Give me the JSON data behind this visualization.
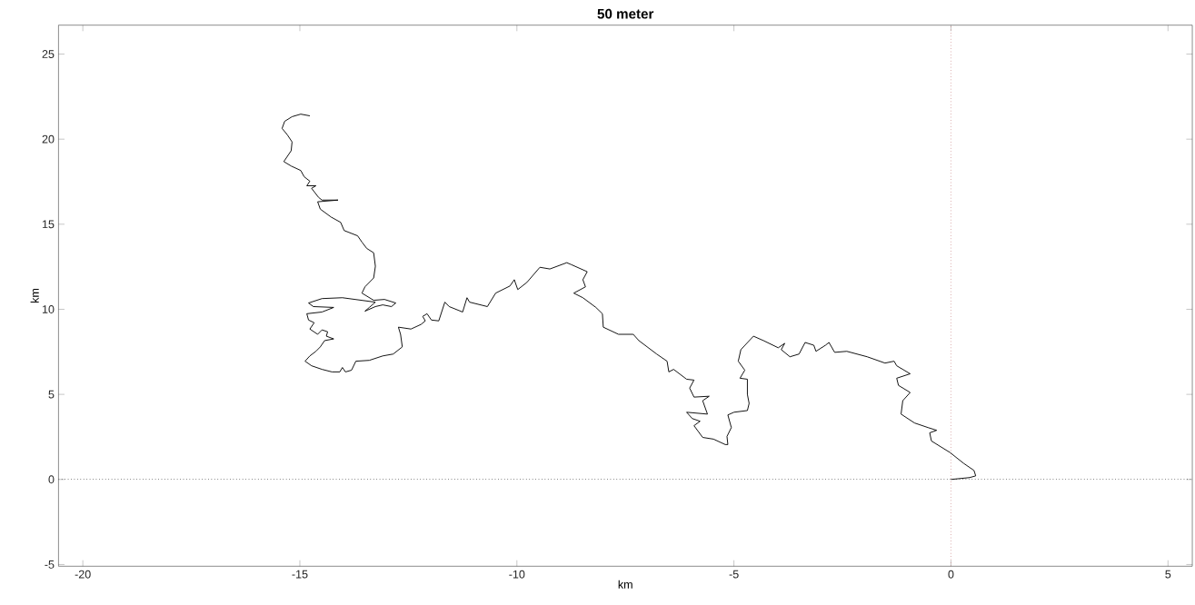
{
  "chart_data": {
    "type": "line",
    "title": "50 meter",
    "xlabel": "km",
    "ylabel": "km",
    "xlim": [
      -20.56,
      5.56
    ],
    "ylim": [
      -5.1,
      26.7
    ],
    "xticks": [
      -20,
      -15,
      -10,
      -5,
      0,
      5
    ],
    "yticks": [
      -5,
      0,
      5,
      10,
      15,
      20,
      25
    ],
    "ref_lines": [
      {
        "axis": "x",
        "value": 0,
        "color": "#c87f7f",
        "line_style": "dotted"
      },
      {
        "axis": "y",
        "value": 0,
        "color": "#000000",
        "line_style": "dotted"
      }
    ],
    "series": [
      {
        "color": "#000000",
        "x": [
          -14.77,
          -14.98,
          -15.18,
          -15.35,
          -15.41,
          -15.29,
          -15.18,
          -15.2,
          -15.37,
          -15.2,
          -14.98,
          -14.9,
          -14.77,
          -14.84,
          -14.63,
          -14.73,
          -14.57,
          -14.49,
          -14.12,
          -14.59,
          -14.53,
          -14.28,
          -14.06,
          -13.98,
          -13.67,
          -13.57,
          -13.46,
          -13.3,
          -13.26,
          -13.3,
          -13.5,
          -13.57,
          -13.3,
          -13.05,
          -12.79,
          -12.89,
          -13.09,
          -13.26,
          -13.5,
          -13.4,
          -13.26,
          -14.02,
          -14.49,
          -14.8,
          -14.69,
          -14.22,
          -14.49,
          -14.84,
          -14.8,
          -14.67,
          -14.77,
          -14.59,
          -14.49,
          -14.36,
          -14.39,
          -14.22,
          -14.43,
          -14.53,
          -14.63,
          -14.77,
          -14.88,
          -14.73,
          -14.49,
          -14.26,
          -14.08,
          -14.02,
          -13.95,
          -13.81,
          -13.71,
          -13.4,
          -13.09,
          -12.85,
          -12.64,
          -12.68,
          -12.73,
          -12.44,
          -12.21,
          -12.11,
          -12.17,
          -12.07,
          -11.97,
          -11.8,
          -11.66,
          -11.56,
          -11.25,
          -11.15,
          -11.09,
          -10.68,
          -10.49,
          -10.16,
          -10.06,
          -9.98,
          -9.77,
          -9.47,
          -9.24,
          -8.85,
          -8.75,
          -8.38,
          -8.48,
          -8.42,
          -8.69,
          -8.48,
          -8.18,
          -8.03,
          -8.01,
          -7.66,
          -7.32,
          -7.19,
          -6.78,
          -6.54,
          -6.5,
          -6.39,
          -6.09,
          -5.92,
          -6.02,
          -5.92,
          -5.57,
          -5.72,
          -5.61,
          -6.09,
          -5.96,
          -5.78,
          -5.92,
          -5.72,
          -5.47,
          -5.2,
          -5.14,
          -5.16,
          -5.06,
          -5.14,
          -5.0,
          -4.69,
          -4.65,
          -4.69,
          -4.69,
          -4.86,
          -4.75,
          -4.9,
          -4.84,
          -4.55,
          -4.32,
          -3.98,
          -3.83,
          -3.91,
          -3.71,
          -3.5,
          -3.36,
          -3.16,
          -3.11,
          -2.89,
          -2.81,
          -2.68,
          -2.4,
          -1.93,
          -1.52,
          -1.31,
          -1.25,
          -0.94,
          -1.25,
          -1.21,
          -0.94,
          -1.11,
          -1.15,
          -0.84,
          -0.53,
          -0.33,
          -0.49,
          -0.45,
          -0.02,
          0.29,
          0.53,
          0.57,
          0.43,
          0
        ],
        "values": [
          21.37,
          21.47,
          21.32,
          21.05,
          20.63,
          20.26,
          19.84,
          19.32,
          18.68,
          18.42,
          18.16,
          17.79,
          17.53,
          17.26,
          17.26,
          17.11,
          16.58,
          16.42,
          16.42,
          16.32,
          15.89,
          15.42,
          15.11,
          14.63,
          14.32,
          13.95,
          13.58,
          13.32,
          12.53,
          11.84,
          11.32,
          10.95,
          10.53,
          10.58,
          10.37,
          10.16,
          10.26,
          10.16,
          9.89,
          10.11,
          10.42,
          10.68,
          10.63,
          10.37,
          10.16,
          10.11,
          9.84,
          9.74,
          9.37,
          9.21,
          8.84,
          8.53,
          8.79,
          8.68,
          8.42,
          8.26,
          8.16,
          7.79,
          7.53,
          7.26,
          6.95,
          6.68,
          6.47,
          6.32,
          6.32,
          6.58,
          6.32,
          6.42,
          6.95,
          7.0,
          7.26,
          7.37,
          7.79,
          8.53,
          8.95,
          8.84,
          9.11,
          9.32,
          9.58,
          9.74,
          9.37,
          9.32,
          10.42,
          10.16,
          9.84,
          10.68,
          10.42,
          10.16,
          10.95,
          11.37,
          11.74,
          11.16,
          11.58,
          12.47,
          12.37,
          12.74,
          12.63,
          12.21,
          11.74,
          11.32,
          10.95,
          10.68,
          10.11,
          9.74,
          8.95,
          8.53,
          8.53,
          8.16,
          7.37,
          6.95,
          6.32,
          6.47,
          5.89,
          5.84,
          5.37,
          4.84,
          4.89,
          4.63,
          3.84,
          3.95,
          3.58,
          3.42,
          3.16,
          2.47,
          2.37,
          2.05,
          2.05,
          2.53,
          3.05,
          3.79,
          3.95,
          4.05,
          4.47,
          5.0,
          5.89,
          5.95,
          6.42,
          6.95,
          7.63,
          8.42,
          8.16,
          7.74,
          8.0,
          7.63,
          7.21,
          7.37,
          8.05,
          7.89,
          7.53,
          7.89,
          8.05,
          7.47,
          7.53,
          7.21,
          6.84,
          6.95,
          6.68,
          6.21,
          5.95,
          5.53,
          5.11,
          4.63,
          3.84,
          3.32,
          3.05,
          2.89,
          2.74,
          2.26,
          1.58,
          0.95,
          0.53,
          0.21,
          0.11,
          0
        ]
      }
    ]
  }
}
